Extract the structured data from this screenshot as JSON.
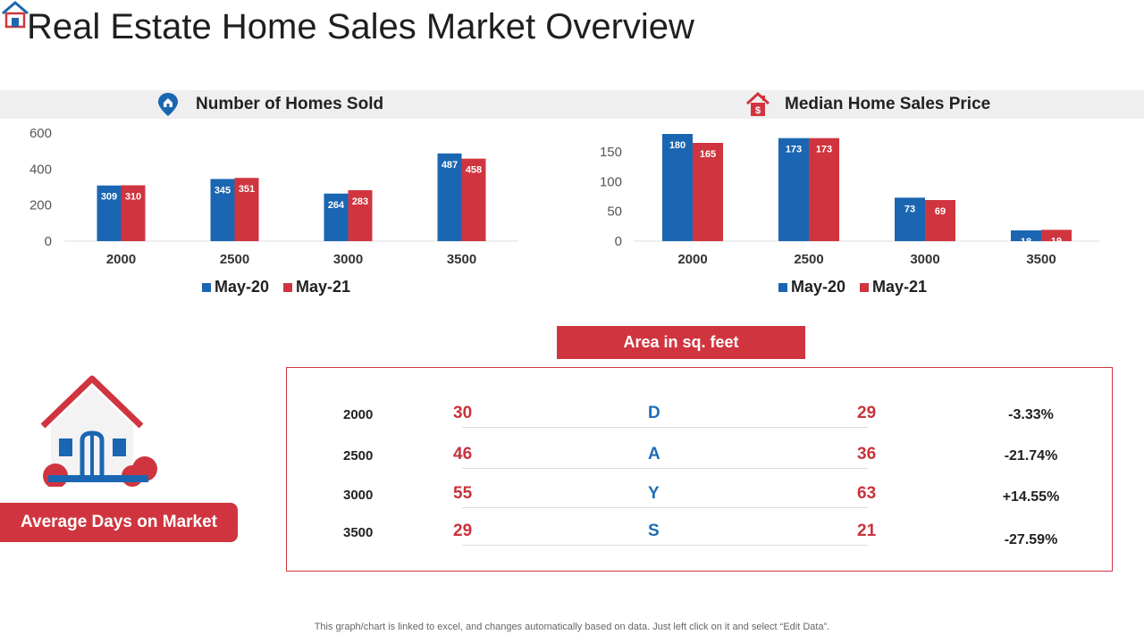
{
  "title": "Real Estate Home Sales Market Overview",
  "colors": {
    "may20": "#1b66b2",
    "may21": "#d0353f",
    "accent": "#d0353f"
  },
  "icons": {
    "logo": "house-logo-icon",
    "homes_sold": "location-pin-icon",
    "price": "house-dollar-icon",
    "market": "house-icon"
  },
  "chart_data": [
    {
      "type": "bar",
      "title": "Number of Homes Sold",
      "categories": [
        "2000",
        "2500",
        "3000",
        "3500"
      ],
      "series": [
        {
          "name": "May-20",
          "values": [
            309,
            345,
            264,
            487
          ]
        },
        {
          "name": "May-21",
          "values": [
            310,
            351,
            283,
            458
          ]
        }
      ],
      "yticks": [
        "0",
        "200",
        "400",
        "600"
      ],
      "ylim": [
        0,
        600
      ],
      "legend": "bottom",
      "grid": false
    },
    {
      "type": "bar",
      "title": "Median Home Sales Price",
      "categories": [
        "2000",
        "2500",
        "3000",
        "3500"
      ],
      "series": [
        {
          "name": "May-20",
          "values": [
            180,
            173,
            73,
            18
          ]
        },
        {
          "name": "May-21",
          "values": [
            165,
            173,
            69,
            19
          ]
        }
      ],
      "yticks": [
        "0",
        "50",
        "100",
        "150"
      ],
      "ylim": [
        0,
        180
      ],
      "legend": "bottom",
      "grid": false
    }
  ],
  "area_table": {
    "header": "Area in sq. feet",
    "rows": [
      {
        "area": "2000",
        "may20": "30",
        "letter": "D",
        "may21": "29",
        "change": "-3.33%"
      },
      {
        "area": "2500",
        "may20": "46",
        "letter": "A",
        "may21": "36",
        "change": "-21.74%"
      },
      {
        "area": "3000",
        "may20": "55",
        "letter": "Y",
        "may21": "63",
        "change": "+14.55%"
      },
      {
        "area": "3500",
        "may20": "29",
        "letter": "S",
        "may21": "21",
        "change": "-27.59%"
      }
    ]
  },
  "market_label": "Average Days on Market",
  "footnote": "This graph/chart is linked to excel, and changes automatically based on data. Just left click on it and select “Edit Data”."
}
